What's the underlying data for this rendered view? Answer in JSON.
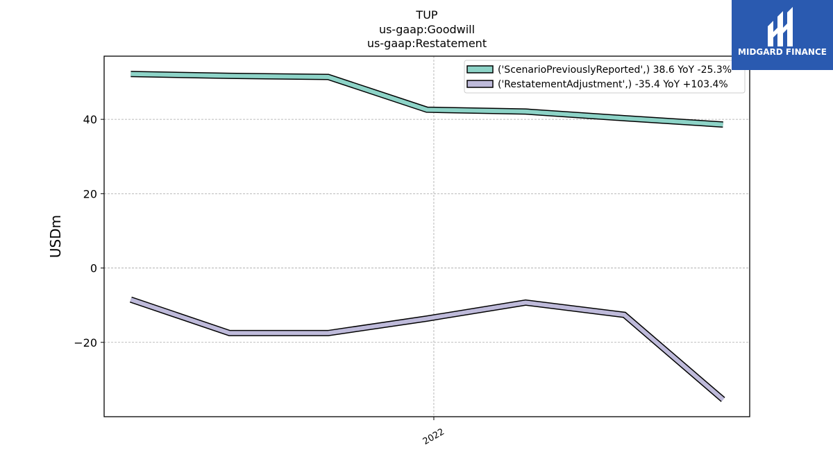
{
  "chart_data": {
    "type": "line",
    "title_lines": [
      "TUP",
      "us-gaap:Goodwill",
      "us-gaap:Restatement"
    ],
    "ylabel": "USDm",
    "xlabel": "",
    "ylim": [
      -40,
      57
    ],
    "xlim": [
      -0.27,
      6.27
    ],
    "yticks": [
      {
        "value": 40,
        "label": "40"
      },
      {
        "value": 20,
        "label": "20"
      },
      {
        "value": 0,
        "label": "0"
      },
      {
        "value": -20,
        "label": "−20"
      }
    ],
    "xticks": [
      {
        "value": 3.07,
        "label": "2022"
      }
    ],
    "grid": true,
    "legend_position": "top-right",
    "x": [
      0,
      1,
      2,
      3,
      4,
      5,
      6
    ],
    "series": [
      {
        "name": "('ScenarioPreviouslyReported',) 38.6 YoY -25.3%",
        "values": [
          52.2,
          51.7,
          51.4,
          42.6,
          42.1,
          40.3,
          38.6
        ],
        "color": "#8dd3c7"
      },
      {
        "name": "('RestatementAdjustment',) -35.4 YoY +103.4%",
        "values": [
          -8.5,
          -17.5,
          -17.5,
          -13.6,
          -9.3,
          -12.6,
          -35.4
        ],
        "color": "#bebada"
      }
    ]
  },
  "logo": {
    "name": "MIDGARD FINANCE",
    "colors": {
      "background": "#2a5ab0",
      "foreground": "#ffffff"
    }
  }
}
